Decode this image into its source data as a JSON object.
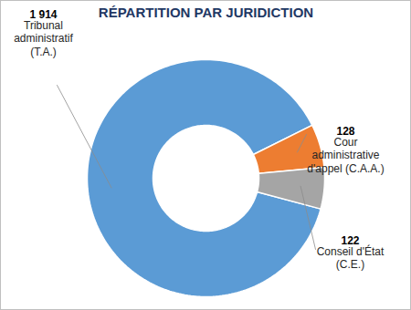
{
  "chart_data": {
    "type": "donut",
    "title": "RÉPARTITION PAR JURIDICTION",
    "categories": [
      "Tribunal administratif (T.A.)",
      "Cour administrative d'appel (C.A.A.)",
      "Conseil d'État (C.E.)"
    ],
    "values": [
      1914,
      128,
      122
    ],
    "value_labels": [
      "1 914",
      "128",
      "122"
    ],
    "colors": [
      "#5b9bd5",
      "#ed7d31",
      "#a5a5a5"
    ],
    "data_labels": true
  }
}
